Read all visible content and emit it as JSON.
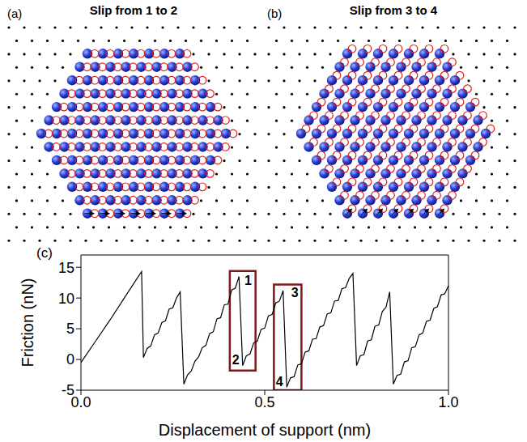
{
  "panels": [
    {
      "label": "(a)",
      "title": "Slip from 1 to 2"
    },
    {
      "label": "(b)",
      "title": "Slip from 3 to 4"
    }
  ],
  "chart_data": {
    "type": "line",
    "label": "(c)",
    "xlabel": "Displacement of support (nm)",
    "ylabel": "Friction (nN)",
    "color": "#000000",
    "xlim": [
      0,
      1
    ],
    "xticks": [
      {
        "value": 0,
        "label": "0.0"
      },
      {
        "value": 0.5,
        "label": "0.5"
      },
      {
        "value": 1,
        "label": "1.0"
      }
    ],
    "ylim": [
      -5,
      17
    ],
    "yticks": [
      -5,
      0,
      5,
      10,
      15
    ],
    "x": [
      0,
      0.04,
      0.08,
      0.12,
      0.165,
      0.17,
      0.18,
      0.19,
      0.2,
      0.21,
      0.22,
      0.23,
      0.24,
      0.25,
      0.26,
      0.27,
      0.28,
      0.29,
      0.3,
      0.31,
      0.32,
      0.33,
      0.34,
      0.35,
      0.36,
      0.37,
      0.38,
      0.39,
      0.4,
      0.41,
      0.42,
      0.43,
      0.44,
      0.45,
      0.46,
      0.47,
      0.48,
      0.49,
      0.5,
      0.51,
      0.52,
      0.53,
      0.54,
      0.55,
      0.56,
      0.57,
      0.58,
      0.59,
      0.6,
      0.61,
      0.62,
      0.63,
      0.64,
      0.65,
      0.66,
      0.67,
      0.68,
      0.69,
      0.7,
      0.71,
      0.72,
      0.73,
      0.74,
      0.75,
      0.76,
      0.77,
      0.78,
      0.79,
      0.8,
      0.81,
      0.82,
      0.83,
      0.84,
      0.85,
      0.86,
      0.87,
      0.88,
      0.89,
      0.9,
      0.91,
      0.92,
      0.93,
      0.94,
      0.95,
      0.96,
      0.97,
      0.98,
      0.99,
      1
    ],
    "values": [
      -0.5,
      3.0,
      6.5,
      10.2,
      14.3,
      0.3,
      1.8,
      2.2,
      4.0,
      4.3,
      6.0,
      6.3,
      8.2,
      8.4,
      10.0,
      11.0,
      -4.0,
      -2.5,
      -1.9,
      -0.3,
      0.4,
      1.9,
      2.3,
      4.2,
      4.5,
      6.6,
      6.8,
      8.9,
      9.0,
      11.3,
      11.6,
      13.5,
      -1.0,
      0.6,
      0.9,
      2.7,
      3.0,
      4.9,
      5.1,
      7.1,
      7.3,
      9.2,
      9.5,
      11.2,
      -4.5,
      -3.0,
      -2.8,
      -0.9,
      -0.7,
      1.2,
      1.4,
      3.3,
      3.4,
      5.3,
      5.5,
      7.4,
      7.6,
      9.5,
      9.6,
      11.5,
      11.7,
      13.2,
      14.0,
      -1.0,
      0.6,
      0.8,
      3.0,
      3.2,
      5.4,
      5.6,
      7.8,
      8.5,
      11.0,
      -4.0,
      -2.6,
      -2.4,
      -0.4,
      -0.2,
      1.9,
      2.1,
      4.0,
      4.3,
      6.2,
      6.4,
      8.3,
      8.6,
      10.5,
      10.7,
      12.0
    ],
    "boxes": [
      {
        "x": [
          0.405,
          0.475
        ],
        "y": [
          -1.8,
          14.4
        ]
      },
      {
        "x": [
          0.525,
          0.6
        ],
        "y": [
          -5,
          12.2
        ]
      }
    ],
    "annotations": [
      {
        "text": "1",
        "x": 0.455,
        "y": 12.9
      },
      {
        "text": "2",
        "x": 0.421,
        "y": 0
      },
      {
        "text": "3",
        "x": 0.582,
        "y": 10.9
      },
      {
        "text": "4",
        "x": 0.54,
        "y": -3.6
      }
    ]
  }
}
